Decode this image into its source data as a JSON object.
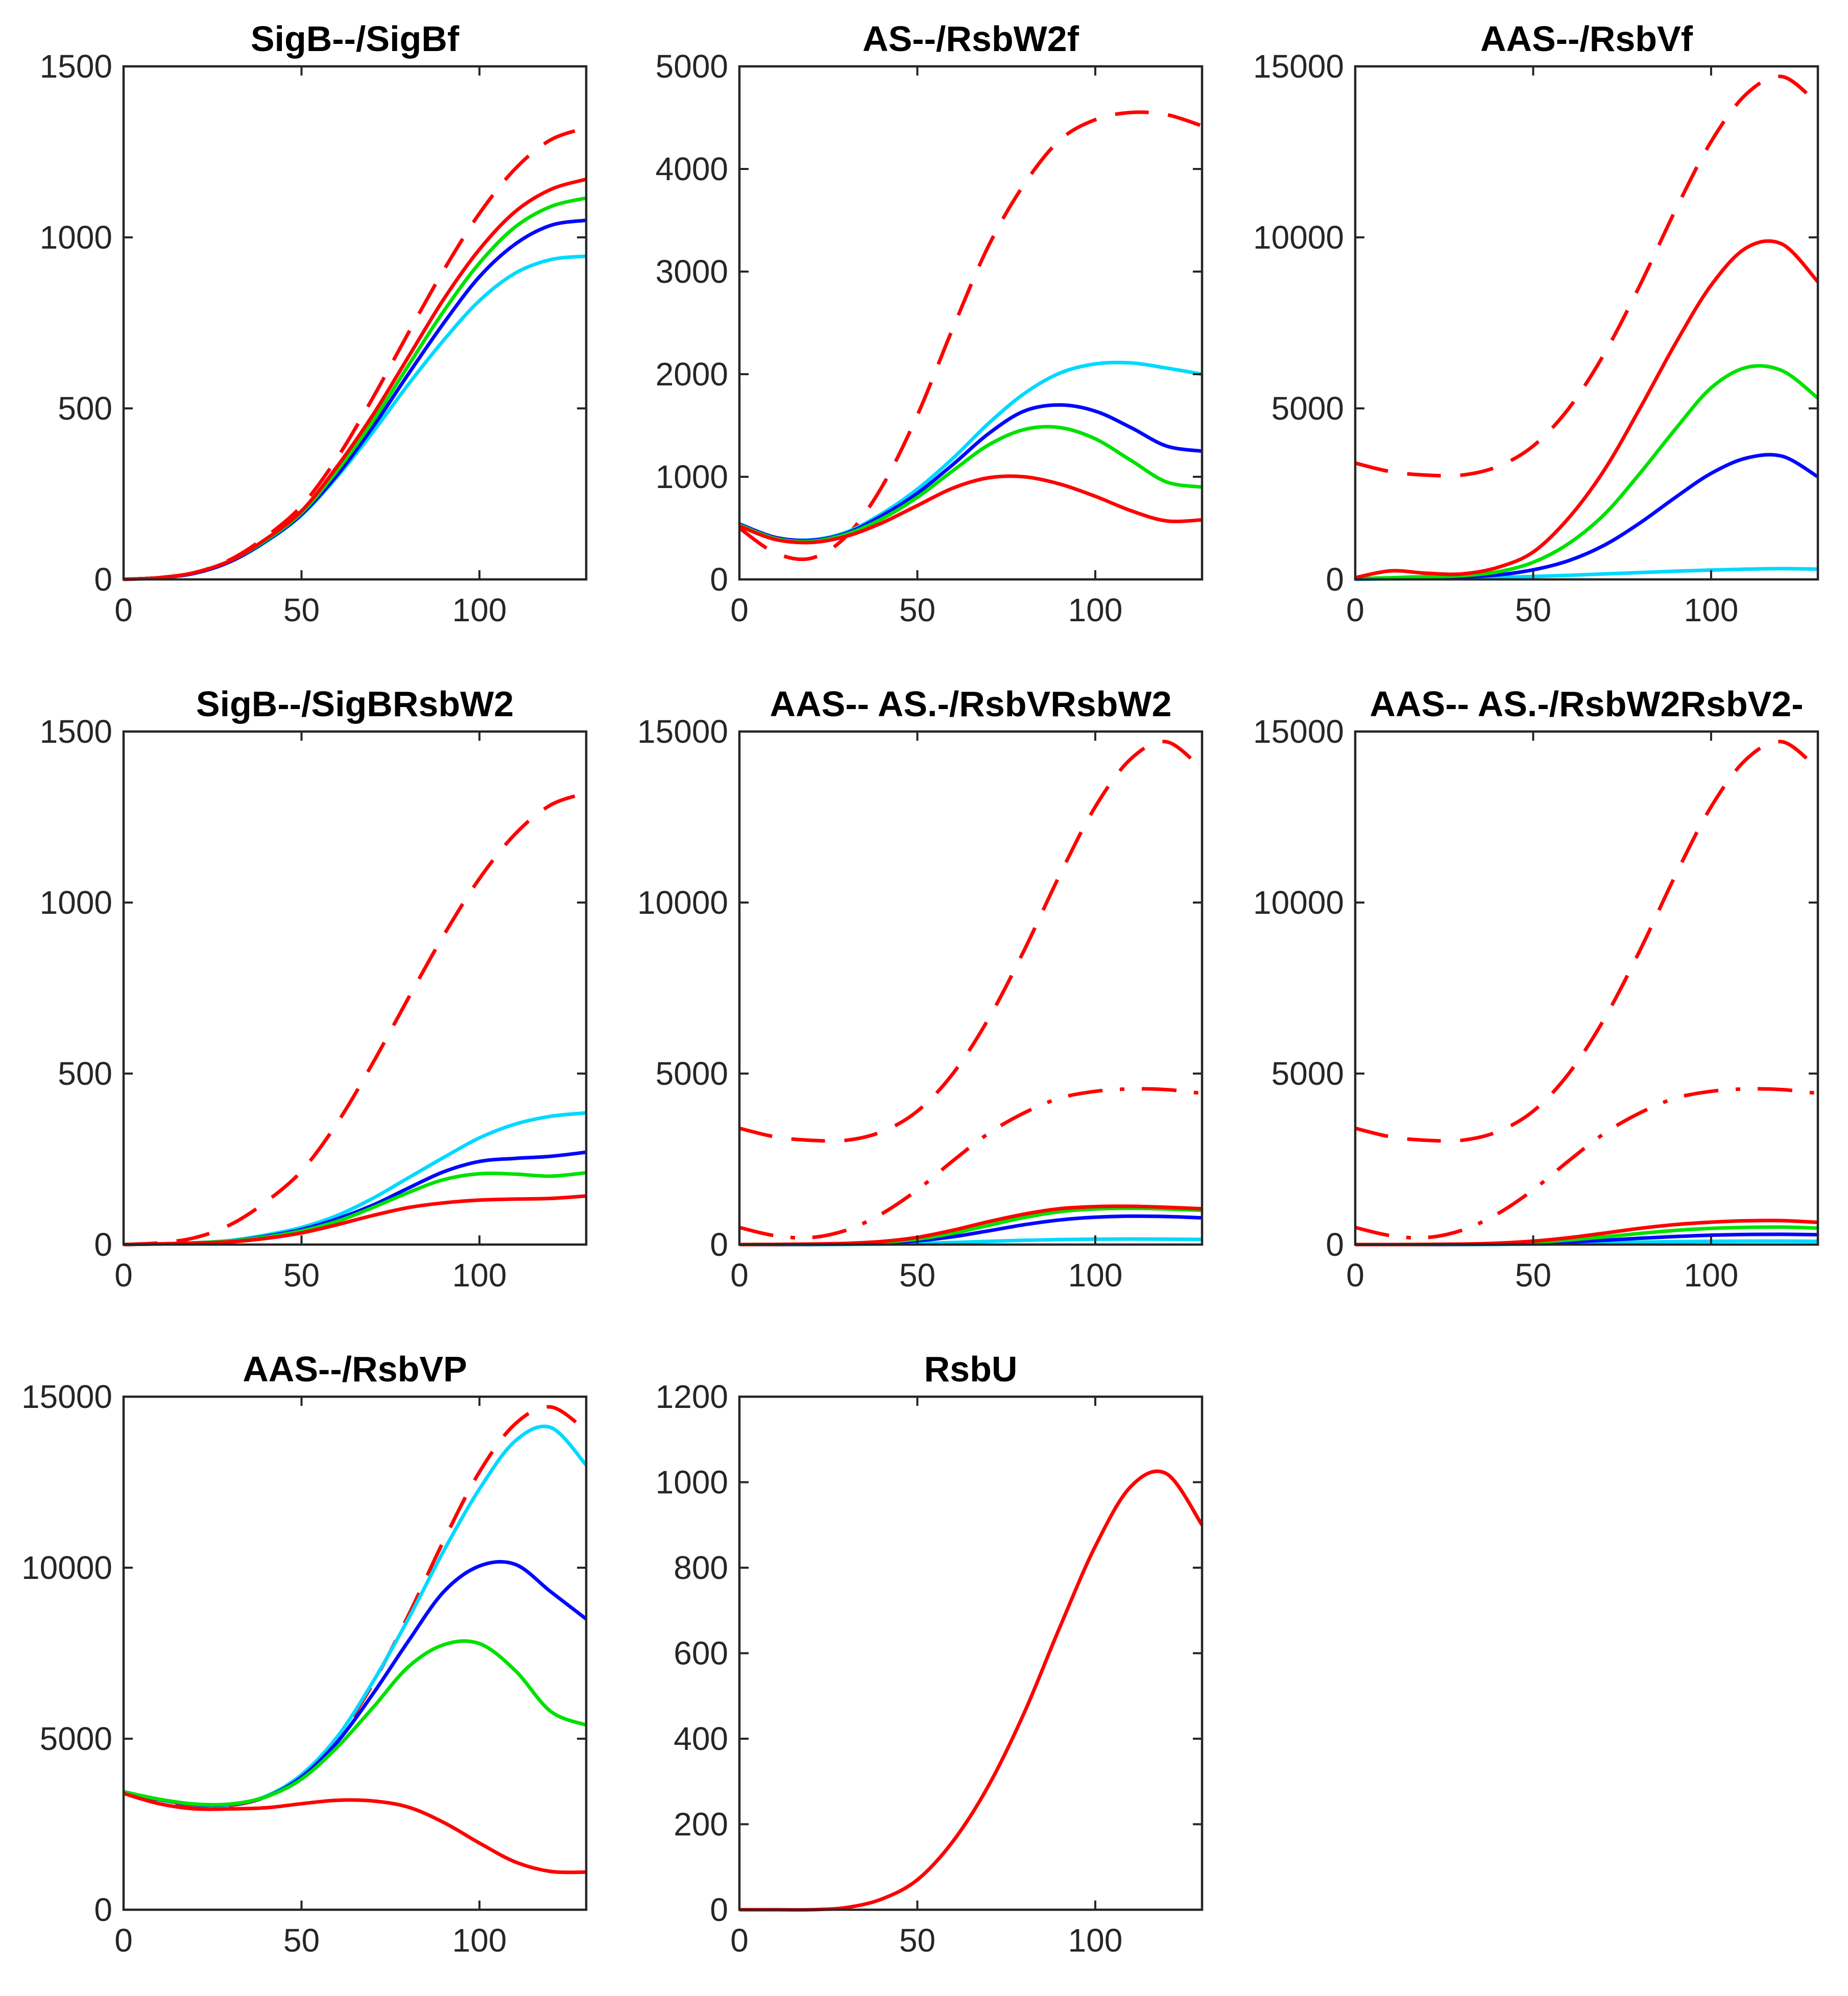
{
  "colors": {
    "red": "#ff0000",
    "green": "#00e100",
    "blue": "#0008ff",
    "cyan": "#00d9ff",
    "axis": "#262626",
    "title": "#000000",
    "background": "#ffffff"
  },
  "chart_data": [
    {
      "type": "line",
      "title": "SigB--/SigBf",
      "xlim": [
        0,
        130
      ],
      "ylim": [
        0,
        1500
      ],
      "xticks": [
        0,
        50,
        100
      ],
      "yticks": [
        0,
        500,
        1000,
        1500
      ],
      "grid": false,
      "legend": false,
      "x": [
        0,
        10,
        20,
        30,
        40,
        50,
        60,
        70,
        80,
        90,
        100,
        110,
        120,
        130
      ],
      "series": [
        {
          "name": "red-dashed",
          "color_key": "red",
          "line_style": "dashed",
          "values": [
            0,
            5,
            20,
            58,
            125,
            215,
            355,
            530,
            720,
            905,
            1070,
            1200,
            1285,
            1320
          ]
        },
        {
          "name": "cyan-solid",
          "color_key": "cyan",
          "line_style": "solid",
          "values": [
            0,
            5,
            18,
            52,
            110,
            188,
            300,
            430,
            570,
            700,
            815,
            895,
            935,
            945
          ]
        },
        {
          "name": "blue-solid",
          "color_key": "blue",
          "line_style": "solid",
          "values": [
            0,
            5,
            18,
            52,
            112,
            190,
            305,
            445,
            600,
            750,
            885,
            980,
            1035,
            1050
          ]
        },
        {
          "name": "green-solid",
          "color_key": "green",
          "line_style": "solid",
          "values": [
            0,
            5,
            20,
            55,
            115,
            195,
            318,
            462,
            625,
            785,
            925,
            1030,
            1090,
            1115
          ]
        },
        {
          "name": "red-solid",
          "color_key": "red",
          "line_style": "solid",
          "values": [
            0,
            5,
            20,
            55,
            118,
            200,
            330,
            480,
            650,
            820,
            965,
            1075,
            1140,
            1170
          ]
        }
      ]
    },
    {
      "type": "line",
      "title": "AS--/RsbW2f",
      "xlim": [
        0,
        130
      ],
      "ylim": [
        0,
        5000
      ],
      "xticks": [
        0,
        50,
        100
      ],
      "yticks": [
        0,
        1000,
        2000,
        3000,
        4000,
        5000
      ],
      "grid": false,
      "legend": false,
      "x": [
        0,
        10,
        20,
        30,
        40,
        50,
        60,
        70,
        80,
        90,
        100,
        110,
        120,
        130
      ],
      "series": [
        {
          "name": "red-dashed",
          "color_key": "red",
          "line_style": "dashed",
          "values": [
            500,
            260,
            205,
            420,
            900,
            1600,
            2450,
            3250,
            3850,
            4280,
            4480,
            4550,
            4530,
            4420
          ]
        },
        {
          "name": "cyan-solid",
          "color_key": "cyan",
          "line_style": "solid",
          "values": [
            540,
            410,
            385,
            460,
            640,
            880,
            1180,
            1520,
            1810,
            2010,
            2100,
            2110,
            2060,
            2000
          ]
        },
        {
          "name": "blue-solid",
          "color_key": "blue",
          "line_style": "solid",
          "values": [
            540,
            410,
            380,
            450,
            620,
            840,
            1120,
            1420,
            1640,
            1700,
            1640,
            1480,
            1300,
            1250
          ]
        },
        {
          "name": "green-solid",
          "color_key": "green",
          "line_style": "solid",
          "values": [
            530,
            400,
            370,
            440,
            590,
            800,
            1060,
            1310,
            1460,
            1480,
            1370,
            1160,
            950,
            900
          ]
        },
        {
          "name": "red-solid",
          "color_key": "red",
          "line_style": "solid",
          "values": [
            520,
            390,
            360,
            420,
            550,
            720,
            890,
            990,
            1000,
            930,
            810,
            670,
            570,
            580
          ]
        }
      ]
    },
    {
      "type": "line",
      "title": "AAS--/RsbVf",
      "xlim": [
        0,
        130
      ],
      "ylim": [
        0,
        15000
      ],
      "xticks": [
        0,
        50,
        100
      ],
      "yticks": [
        0,
        5000,
        10000,
        15000
      ],
      "grid": false,
      "legend": false,
      "x": [
        0,
        10,
        20,
        30,
        40,
        50,
        60,
        70,
        80,
        90,
        100,
        110,
        120,
        130
      ],
      "series": [
        {
          "name": "red-dashed",
          "color_key": "red",
          "line_style": "dashed",
          "values": [
            3400,
            3150,
            3050,
            3050,
            3300,
            3900,
            5000,
            6600,
            8600,
            10800,
            12800,
            14200,
            14700,
            13900
          ]
        },
        {
          "name": "cyan-solid",
          "color_key": "cyan",
          "line_style": "solid",
          "values": [
            5,
            15,
            25,
            35,
            55,
            85,
            120,
            160,
            200,
            240,
            275,
            300,
            315,
            300
          ]
        },
        {
          "name": "blue-solid",
          "color_key": "blue",
          "line_style": "solid",
          "values": [
            10,
            30,
            50,
            70,
            130,
            280,
            550,
            1000,
            1650,
            2400,
            3100,
            3550,
            3600,
            3000
          ]
        },
        {
          "name": "green-solid",
          "color_key": "green",
          "line_style": "solid",
          "values": [
            20,
            50,
            80,
            110,
            220,
            500,
            1050,
            1900,
            3100,
            4400,
            5600,
            6200,
            6100,
            5300
          ]
        },
        {
          "name": "red-solid",
          "color_key": "red",
          "line_style": "solid",
          "values": [
            50,
            250,
            180,
            160,
            350,
            800,
            1800,
            3200,
            5000,
            6900,
            8600,
            9700,
            9800,
            8700
          ]
        }
      ]
    },
    {
      "type": "line",
      "title": "SigB--/SigBRsbW2",
      "xlim": [
        0,
        130
      ],
      "ylim": [
        0,
        1500
      ],
      "xticks": [
        0,
        50,
        100
      ],
      "yticks": [
        0,
        500,
        1000,
        1500
      ],
      "grid": false,
      "legend": false,
      "x": [
        0,
        10,
        20,
        30,
        40,
        50,
        60,
        70,
        80,
        90,
        100,
        110,
        120,
        130
      ],
      "series": [
        {
          "name": "red-dashed",
          "color_key": "red",
          "line_style": "dashed",
          "values": [
            0,
            5,
            20,
            58,
            125,
            215,
            355,
            530,
            720,
            905,
            1070,
            1200,
            1285,
            1320
          ]
        },
        {
          "name": "cyan-solid",
          "color_key": "cyan",
          "line_style": "solid",
          "values": [
            0,
            2,
            5,
            12,
            28,
            50,
            85,
            135,
            195,
            255,
            312,
            352,
            375,
            385
          ]
        },
        {
          "name": "blue-solid",
          "color_key": "blue",
          "line_style": "solid",
          "values": [
            0,
            2,
            5,
            10,
            24,
            44,
            75,
            115,
            165,
            213,
            243,
            252,
            258,
            270
          ]
        },
        {
          "name": "green-solid",
          "color_key": "green",
          "line_style": "solid",
          "values": [
            0,
            2,
            5,
            10,
            22,
            40,
            68,
            108,
            152,
            190,
            207,
            206,
            200,
            210
          ]
        },
        {
          "name": "red-solid",
          "color_key": "red",
          "line_style": "solid",
          "values": [
            0,
            2,
            4,
            8,
            18,
            34,
            58,
            85,
            108,
            122,
            130,
            133,
            135,
            142
          ]
        }
      ]
    },
    {
      "type": "line",
      "title": "AAS-- AS.-/RsbVRsbW2",
      "xlim": [
        0,
        130
      ],
      "ylim": [
        0,
        15000
      ],
      "xticks": [
        0,
        50,
        100
      ],
      "yticks": [
        0,
        5000,
        10000,
        15000
      ],
      "grid": false,
      "legend": false,
      "x": [
        0,
        10,
        20,
        30,
        40,
        50,
        60,
        70,
        80,
        90,
        100,
        110,
        120,
        130
      ],
      "series": [
        {
          "name": "red-dashed",
          "color_key": "red",
          "line_style": "dashed",
          "values": [
            3400,
            3150,
            3050,
            3050,
            3300,
            3900,
            5000,
            6600,
            8600,
            10800,
            12800,
            14200,
            14700,
            13900
          ]
        },
        {
          "name": "red-dashdot",
          "color_key": "red",
          "line_style": "dashdot",
          "values": [
            500,
            260,
            205,
            420,
            900,
            1600,
            2450,
            3250,
            3850,
            4280,
            4480,
            4550,
            4530,
            4420
          ]
        },
        {
          "name": "cyan-solid",
          "color_key": "cyan",
          "line_style": "solid",
          "values": [
            0,
            0,
            0,
            5,
            15,
            30,
            60,
            95,
            125,
            145,
            158,
            162,
            158,
            150
          ]
        },
        {
          "name": "blue-solid",
          "color_key": "blue",
          "line_style": "solid",
          "values": [
            0,
            0,
            5,
            15,
            45,
            110,
            230,
            400,
            580,
            720,
            800,
            830,
            820,
            780
          ]
        },
        {
          "name": "green-solid",
          "color_key": "green",
          "line_style": "solid",
          "values": [
            0,
            5,
            10,
            25,
            65,
            160,
            330,
            560,
            790,
            960,
            1040,
            1060,
            1040,
            1000
          ]
        },
        {
          "name": "red-solid",
          "color_key": "red",
          "line_style": "solid",
          "values": [
            0,
            5,
            15,
            35,
            90,
            210,
            420,
            670,
            890,
            1050,
            1110,
            1120,
            1090,
            1050
          ]
        }
      ]
    },
    {
      "type": "line",
      "title": "AAS-- AS.-/RsbW2RsbV2-",
      "xlim": [
        0,
        130
      ],
      "ylim": [
        0,
        15000
      ],
      "xticks": [
        0,
        50,
        100
      ],
      "yticks": [
        0,
        5000,
        10000,
        15000
      ],
      "grid": false,
      "legend": false,
      "x": [
        0,
        10,
        20,
        30,
        40,
        50,
        60,
        70,
        80,
        90,
        100,
        110,
        120,
        130
      ],
      "series": [
        {
          "name": "red-dashed",
          "color_key": "red",
          "line_style": "dashed",
          "values": [
            3400,
            3150,
            3050,
            3050,
            3300,
            3900,
            5000,
            6600,
            8600,
            10800,
            12800,
            14200,
            14700,
            13900
          ]
        },
        {
          "name": "red-dashdot",
          "color_key": "red",
          "line_style": "dashdot",
          "values": [
            500,
            260,
            205,
            420,
            900,
            1600,
            2450,
            3250,
            3850,
            4280,
            4480,
            4550,
            4530,
            4420
          ]
        },
        {
          "name": "cyan-solid",
          "color_key": "cyan",
          "line_style": "solid",
          "values": [
            0,
            0,
            0,
            0,
            5,
            15,
            30,
            50,
            70,
            85,
            95,
            100,
            100,
            95
          ]
        },
        {
          "name": "blue-solid",
          "color_key": "blue",
          "line_style": "solid",
          "values": [
            0,
            0,
            0,
            5,
            15,
            35,
            75,
            125,
            185,
            235,
            275,
            295,
            300,
            290
          ]
        },
        {
          "name": "green-solid",
          "color_key": "green",
          "line_style": "solid",
          "values": [
            0,
            0,
            5,
            10,
            25,
            65,
            135,
            225,
            325,
            415,
            475,
            505,
            510,
            480
          ]
        },
        {
          "name": "red-solid",
          "color_key": "red",
          "line_style": "solid",
          "values": [
            0,
            0,
            5,
            15,
            40,
            100,
            200,
            335,
            475,
            585,
            655,
            695,
            700,
            650
          ]
        }
      ]
    },
    {
      "type": "line",
      "title": "AAS--/RsbVP",
      "xlim": [
        0,
        130
      ],
      "ylim": [
        0,
        15000
      ],
      "xticks": [
        0,
        50,
        100
      ],
      "yticks": [
        0,
        5000,
        10000,
        15000
      ],
      "grid": false,
      "legend": false,
      "x": [
        0,
        10,
        20,
        30,
        40,
        50,
        60,
        70,
        80,
        90,
        100,
        110,
        120,
        130
      ],
      "series": [
        {
          "name": "red-dashed",
          "color_key": "red",
          "line_style": "dashed",
          "values": [
            3400,
            3150,
            3050,
            3050,
            3300,
            3900,
            5000,
            6600,
            8600,
            10800,
            12800,
            14200,
            14700,
            14000
          ]
        },
        {
          "name": "cyan-solid",
          "color_key": "cyan",
          "line_style": "solid",
          "values": [
            3450,
            3220,
            3070,
            3070,
            3320,
            3950,
            5050,
            6650,
            8500,
            10500,
            12300,
            13700,
            14100,
            13000
          ]
        },
        {
          "name": "blue-solid",
          "color_key": "blue",
          "line_style": "solid",
          "values": [
            3450,
            3220,
            3080,
            3080,
            3300,
            3880,
            4900,
            6300,
            7850,
            9300,
            10050,
            10100,
            9300,
            8500
          ]
        },
        {
          "name": "green-solid",
          "color_key": "green",
          "line_style": "solid",
          "values": [
            3450,
            3230,
            3090,
            3090,
            3300,
            3820,
            4750,
            5900,
            7100,
            7750,
            7780,
            7000,
            5800,
            5400
          ]
        },
        {
          "name": "red-solid",
          "color_key": "red",
          "line_style": "solid",
          "values": [
            3400,
            3100,
            2950,
            2950,
            2980,
            3100,
            3200,
            3180,
            3000,
            2550,
            1950,
            1400,
            1120,
            1100
          ]
        }
      ]
    },
    {
      "type": "line",
      "title": "RsbU",
      "xlim": [
        0,
        130
      ],
      "ylim": [
        0,
        1200
      ],
      "xticks": [
        0,
        50,
        100
      ],
      "yticks": [
        0,
        200,
        400,
        600,
        800,
        1000,
        1200
      ],
      "grid": false,
      "legend": false,
      "x": [
        0,
        10,
        20,
        30,
        40,
        50,
        60,
        70,
        80,
        90,
        100,
        110,
        120,
        130
      ],
      "series": [
        {
          "name": "red-solid",
          "color_key": "red",
          "line_style": "solid",
          "values": [
            0,
            0,
            0,
            5,
            25,
            70,
            160,
            290,
            460,
            660,
            850,
            990,
            1020,
            900
          ]
        }
      ]
    }
  ]
}
